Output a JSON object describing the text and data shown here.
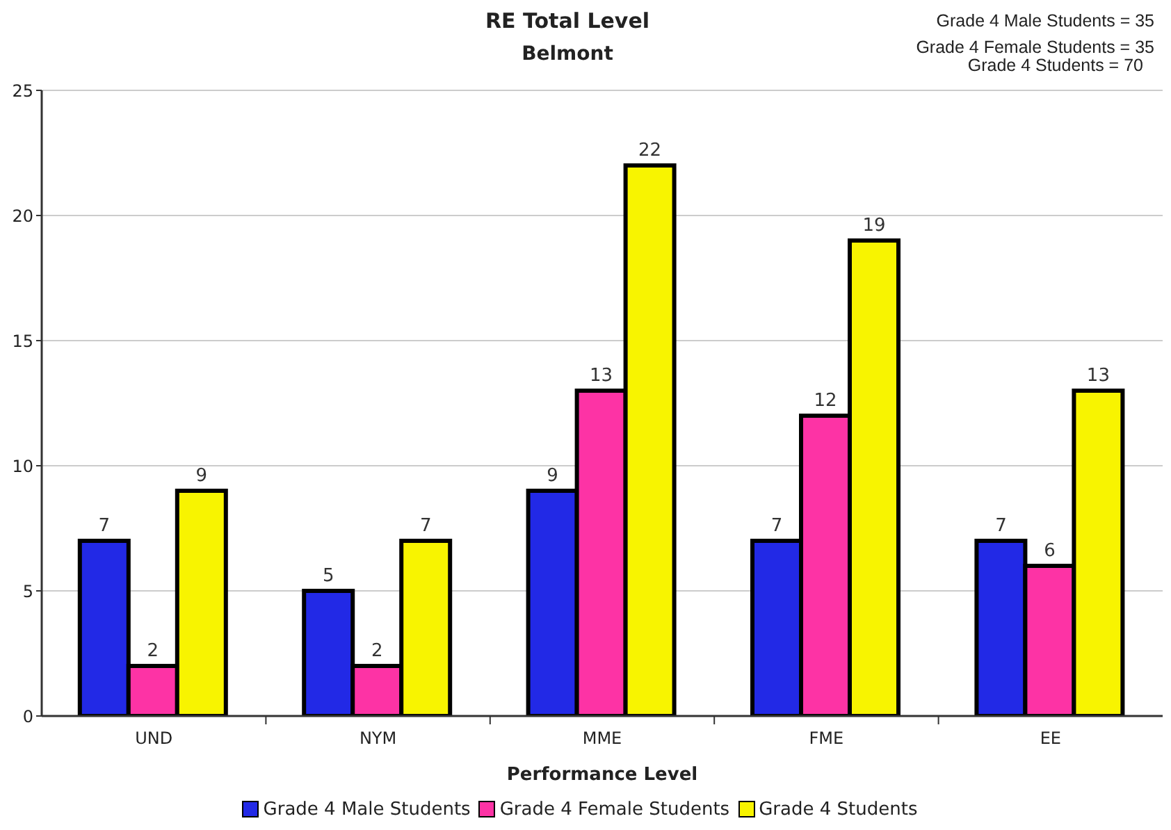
{
  "chart_data": {
    "type": "bar",
    "title": "RE Total Level",
    "subtitle": "Belmont",
    "xlabel": "Performance Level",
    "annotations": [
      "Grade 4 Male Students = 35",
      "Grade 4 Female Students = 35",
      "Grade 4 Students = 70"
    ],
    "categories": [
      "UND",
      "NYM",
      "MME",
      "FME",
      "EE"
    ],
    "series": [
      {
        "name": "Grade 4 Male Students",
        "color": "#2229e6",
        "values": [
          7,
          5,
          9,
          7,
          7
        ]
      },
      {
        "name": "Grade 4 Female Students",
        "color": "#fd33a5",
        "values": [
          2,
          2,
          13,
          12,
          6
        ]
      },
      {
        "name": "Grade 4 Students",
        "color": "#f8f400",
        "values": [
          9,
          7,
          22,
          19,
          13
        ]
      }
    ],
    "ylim": [
      0,
      25
    ],
    "yticks": [
      0,
      5,
      10,
      15,
      20,
      25
    ],
    "grid": "y",
    "legend": "bottom",
    "data_labels": true
  }
}
